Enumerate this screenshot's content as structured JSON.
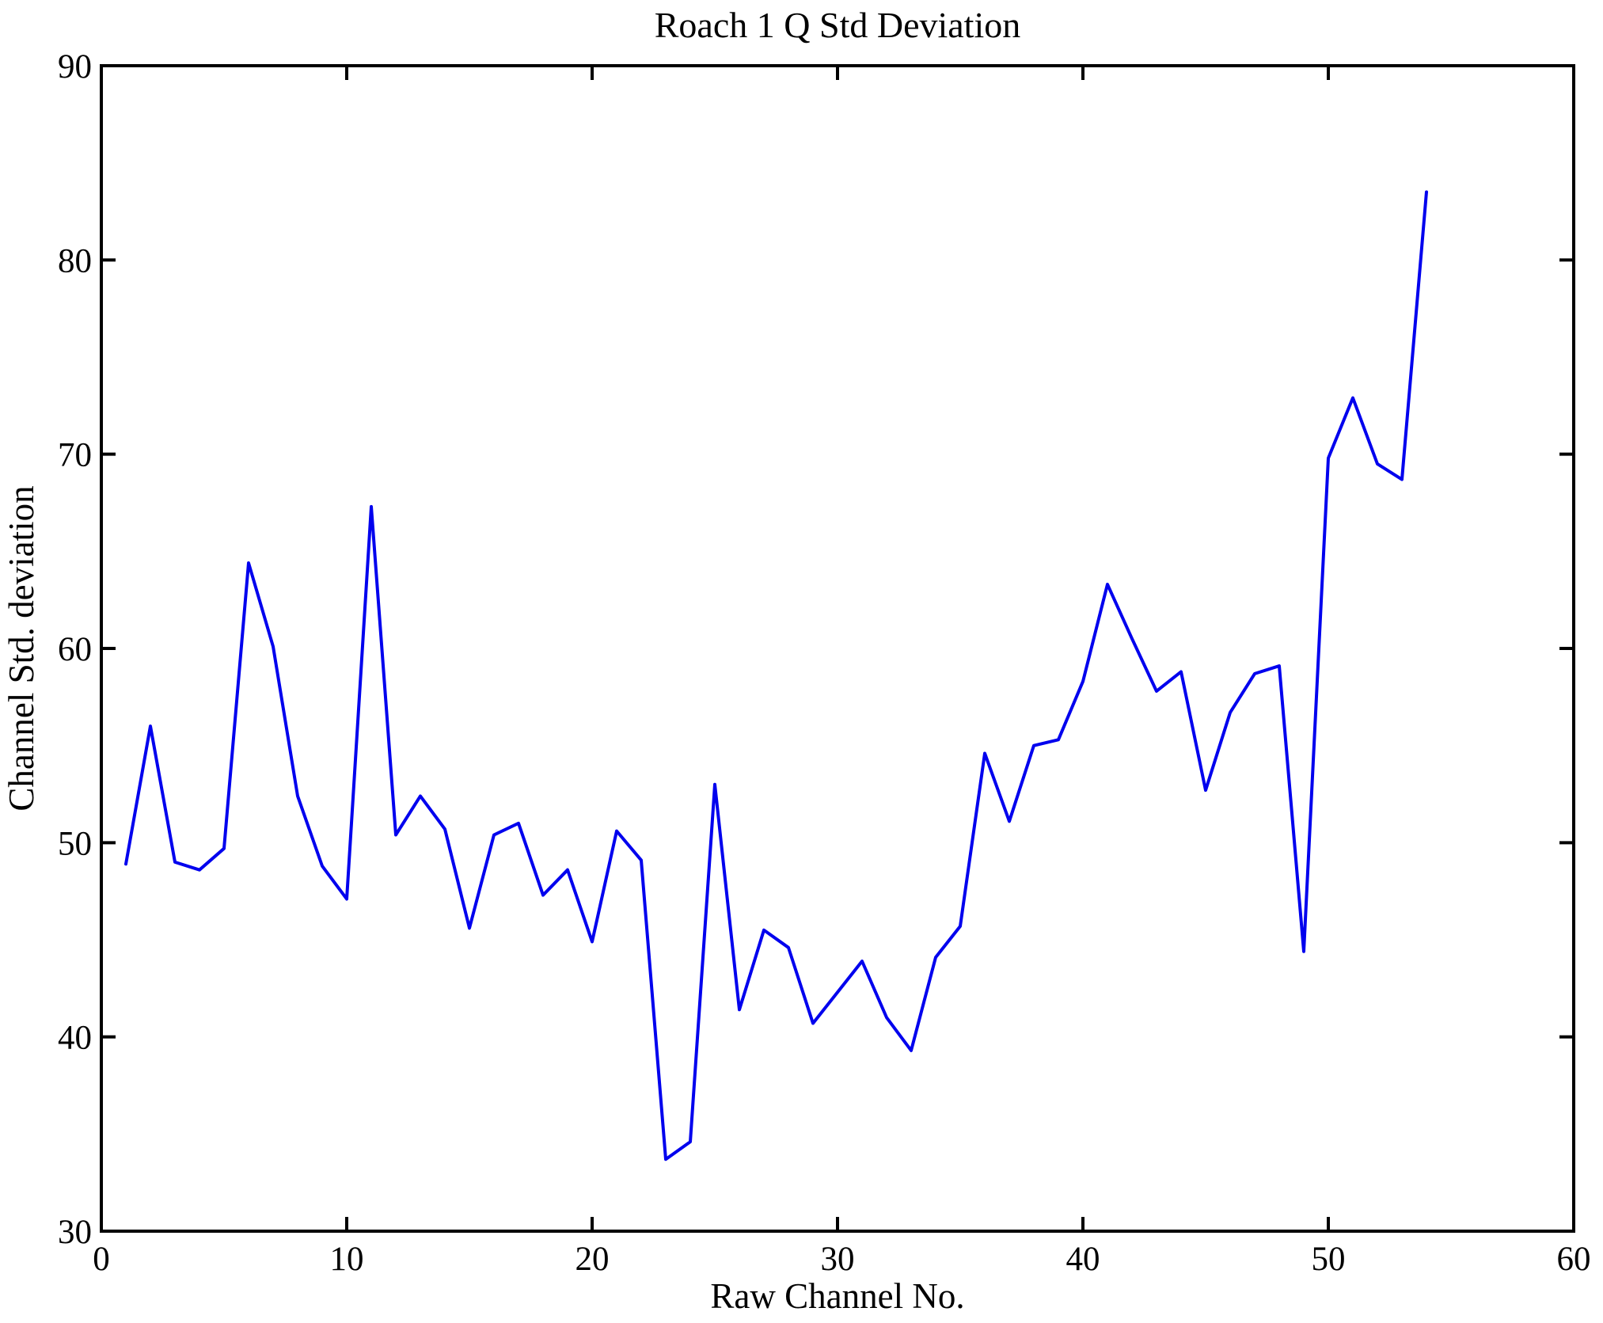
{
  "title": "Roach 1 Q Std Deviation",
  "chart_data": {
    "type": "line",
    "title": "Roach 1 Q Std Deviation",
    "xlabel": "Raw Channel No.",
    "ylabel": "Channel Std. deviation",
    "xlim": [
      0,
      60
    ],
    "ylim": [
      30,
      90
    ],
    "x_ticks": [
      0,
      10,
      20,
      30,
      40,
      50,
      60
    ],
    "y_ticks": [
      30,
      40,
      50,
      60,
      70,
      80,
      90
    ],
    "grid": false,
    "legend": "none",
    "line_color": "#0000EE",
    "series": [
      {
        "name": "Channel Std. deviation vs Raw Channel No.",
        "x": [
          1,
          2,
          3,
          4,
          5,
          6,
          7,
          8,
          9,
          10,
          11,
          12,
          13,
          14,
          15,
          16,
          17,
          18,
          19,
          20,
          21,
          22,
          23,
          24,
          25,
          26,
          27,
          28,
          29,
          30,
          31,
          32,
          33,
          34,
          35,
          36,
          37,
          38,
          39,
          40,
          41,
          42,
          43,
          44,
          45,
          46,
          47,
          48,
          49,
          50,
          51,
          52,
          53,
          54
        ],
        "values": [
          48.9,
          56.0,
          49.0,
          48.6,
          49.7,
          64.4,
          60.1,
          52.4,
          48.8,
          47.1,
          67.3,
          50.4,
          52.4,
          50.7,
          45.6,
          50.4,
          51.0,
          47.3,
          48.6,
          44.9,
          50.6,
          49.1,
          33.7,
          34.6,
          53.0,
          41.4,
          45.5,
          44.6,
          40.7,
          42.3,
          43.9,
          41.0,
          39.3,
          44.1,
          45.7,
          54.6,
          51.1,
          55.0,
          55.3,
          58.3,
          63.3,
          60.5,
          57.8,
          58.8,
          52.7,
          56.7,
          58.7,
          59.1,
          44.4,
          69.8,
          72.9,
          69.5,
          68.7,
          83.5
        ]
      }
    ]
  }
}
